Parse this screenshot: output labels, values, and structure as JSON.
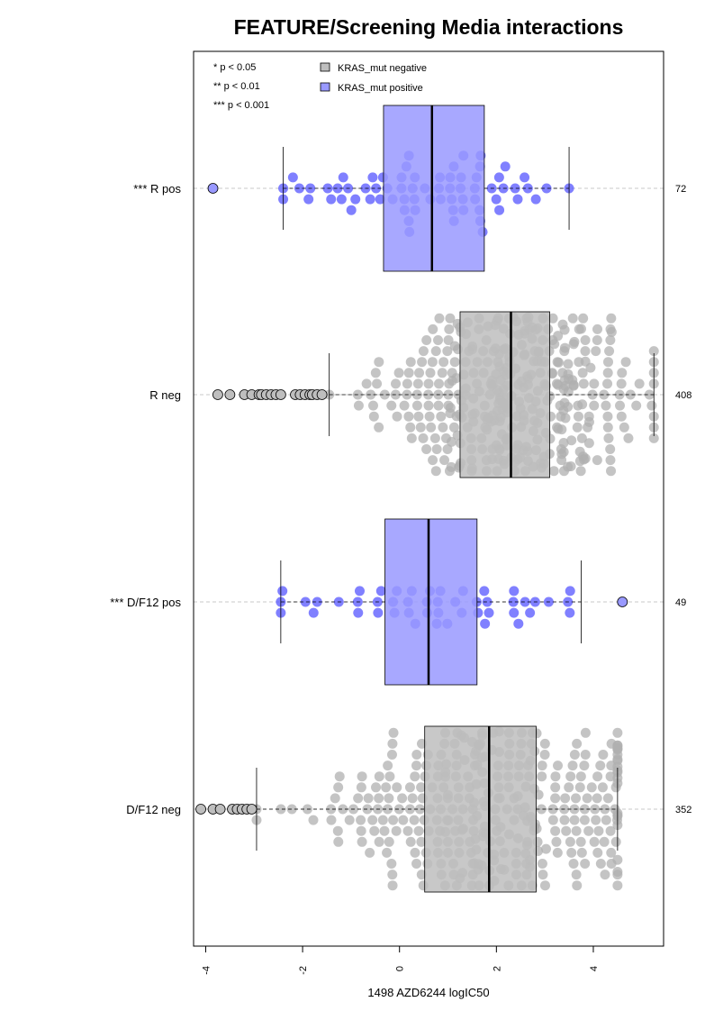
{
  "chart_data": {
    "type": "box",
    "title": "FEATURE/Screening Media interactions",
    "xlabel": "1498 AZD6244 logIC50",
    "xlim": [
      -4.25,
      5.45
    ],
    "x_ticks": [
      "-4",
      "-2",
      "0",
      "2",
      "4"
    ],
    "significance_legend": [
      "* p < 0.05",
      "** p < 0.01",
      "*** p < 0.001"
    ],
    "legend": [
      {
        "label": "KRAS_mut negative",
        "color": "#bebebe"
      },
      {
        "label": "KRAS_mut positive",
        "color": "#9999ff"
      }
    ],
    "groups": [
      {
        "label": "*** R pos",
        "n": "72",
        "color": "#9999ff",
        "dot_color": "#5555ff",
        "whisker_low": -2.4,
        "q1": -0.33,
        "median": 0.67,
        "q3": 1.75,
        "whisker_high": 3.5,
        "outliers": [
          -3.85
        ]
      },
      {
        "label": "R neg",
        "n": "408",
        "color": "#bebebe",
        "dot_color": "#b0b0b0",
        "whisker_low": -1.45,
        "q1": 1.25,
        "median": 2.3,
        "q3": 3.1,
        "whisker_high": 5.25,
        "outliers": [
          -3.75,
          -3.5,
          -3.2,
          -3.05,
          -2.9,
          -2.85,
          -2.75,
          -2.65,
          -2.55,
          -2.45,
          -2.15,
          -2.05,
          -1.95,
          -1.85,
          -1.8,
          -1.7,
          -1.6
        ]
      },
      {
        "label": "*** D/F12 pos",
        "n": "49",
        "color": "#9999ff",
        "dot_color": "#5555ff",
        "whisker_low": -2.45,
        "q1": -0.3,
        "median": 0.6,
        "q3": 1.6,
        "whisker_high": 3.75,
        "outliers": [
          4.6
        ]
      },
      {
        "label": "D/F12 neg",
        "n": "352",
        "color": "#bebebe",
        "dot_color": "#b0b0b0",
        "whisker_low": -2.95,
        "q1": 0.52,
        "median": 1.85,
        "q3": 2.82,
        "whisker_high": 4.5,
        "outliers": [
          -4.1,
          -3.85,
          -3.7,
          -3.45,
          -3.35,
          -3.25,
          -3.15,
          -3.05
        ]
      }
    ]
  }
}
